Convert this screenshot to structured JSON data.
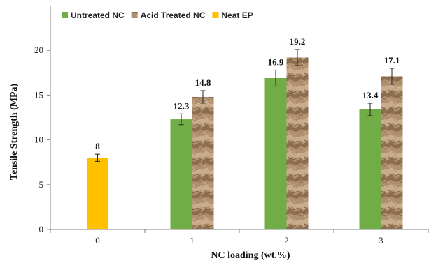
{
  "chart_data": {
    "type": "bar",
    "categories": [
      "0",
      "1",
      "2",
      "3"
    ],
    "series": [
      {
        "name": "Untreated NC",
        "color": "#70AD47",
        "pattern": "solid",
        "values": [
          null,
          12.3,
          16.9,
          13.4
        ],
        "errors": [
          null,
          0.6,
          0.9,
          0.7
        ]
      },
      {
        "name": "Acid Treated NC",
        "color": "#B08F6E",
        "pattern": "crumpled-paper-texture",
        "values": [
          null,
          14.8,
          19.2,
          17.1
        ],
        "errors": [
          null,
          0.7,
          0.9,
          0.9
        ]
      },
      {
        "name": "Neat EP",
        "color": "#FFC000",
        "pattern": "solid",
        "values": [
          8,
          null,
          null,
          null
        ],
        "errors": [
          0.4,
          null,
          null,
          null
        ]
      }
    ],
    "data_labels": [
      "8",
      "12.3",
      "14.8",
      "16.9",
      "19.2",
      "13.4",
      "17.1"
    ],
    "ylabel": "Tensile Strength (MPa)",
    "xlabel": "NC loading (wt.%)",
    "ylim": [
      0,
      25
    ],
    "yticks": [
      0,
      5,
      10,
      15,
      20
    ],
    "grid": false,
    "legend_position": "top"
  }
}
